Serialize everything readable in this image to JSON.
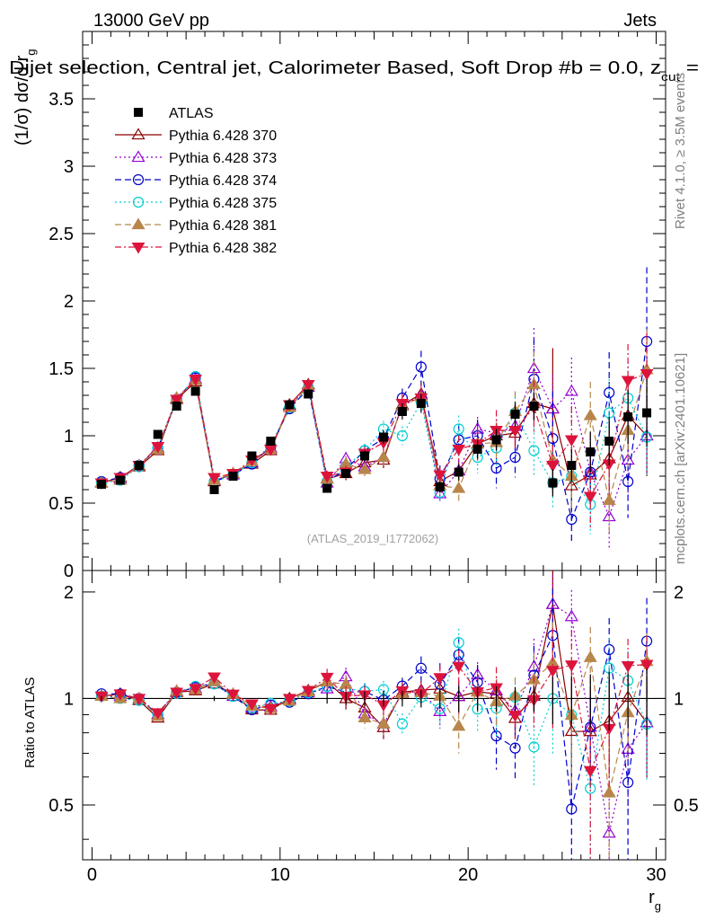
{
  "header": {
    "left": "13000 GeV pp",
    "right": "Jets",
    "title": "Dijet selection, Central jet, Calorimeter Based, Soft Drop #b = 0.0, z",
    "title_sub": "cut",
    "title_tail": " = "
  },
  "side": {
    "rivet": "Rivet 4.1.0, ≥ 3.5M events",
    "mcplots": "mcplots.cern.ch [arXiv:2401.10621]"
  },
  "watermark": "(ATLAS_2019_I1772062)",
  "chart_data": {
    "type": "scatter",
    "x": [
      0.5,
      1.5,
      2.5,
      3.5,
      4.5,
      5.5,
      6.5,
      7.5,
      8.5,
      9.5,
      10.5,
      11.5,
      12.5,
      13.5,
      14.5,
      15.5,
      16.5,
      17.5,
      18.5,
      19.5,
      20.5,
      21.5,
      22.5,
      23.5,
      24.5,
      25.5,
      26.5,
      27.5,
      28.5,
      29.5
    ],
    "xlim": [
      -0.5,
      30.5
    ],
    "xticks": [
      0,
      10,
      20,
      30
    ],
    "xlabel": "r",
    "xlabel_sub": "g",
    "ylabel": "(1/σ) dσ/d r",
    "ylabel_sub": "g",
    "ylim": [
      0,
      4.0
    ],
    "yticks": [
      0,
      0.5,
      1,
      1.5,
      2,
      2.5,
      3,
      3.5
    ],
    "ratio_ylabel": "Ratio to ATLAS",
    "ratio_ylim": [
      0.35,
      2.3
    ],
    "ratio_yticks": [
      0.5,
      1,
      2
    ],
    "ratio_reference": 1,
    "series": [
      {
        "name": "ATLAS",
        "style": "data",
        "color": "#000000",
        "values": [
          0.64,
          0.67,
          0.78,
          1.01,
          1.22,
          1.33,
          0.6,
          0.7,
          0.85,
          0.96,
          1.23,
          1.31,
          0.61,
          0.72,
          0.85,
          0.99,
          1.18,
          1.24,
          0.62,
          0.73,
          0.9,
          0.97,
          1.16,
          1.22,
          0.65,
          0.78,
          0.88,
          0.96,
          1.14,
          1.17
        ],
        "errors": [
          0.01,
          0.01,
          0.01,
          0.01,
          0.01,
          0.01,
          0.01,
          0.01,
          0.01,
          0.01,
          0.01,
          0.01,
          0.02,
          0.03,
          0.04,
          0.05,
          0.06,
          0.07,
          0.04,
          0.06,
          0.07,
          0.08,
          0.09,
          0.1,
          0.1,
          0.12,
          0.15,
          0.18,
          0.2,
          0.25
        ]
      },
      {
        "name": "Pythia 6.428 370",
        "style": "solid",
        "color": "#8b0000",
        "marker": "triangle-open",
        "values": [
          0.65,
          0.69,
          0.77,
          0.89,
          1.27,
          1.4,
          0.66,
          0.72,
          0.79,
          0.89,
          1.23,
          1.38,
          0.68,
          0.72,
          0.8,
          0.82,
          1.23,
          1.31,
          0.66,
          0.74,
          0.94,
          1.0,
          1.02,
          1.24,
          1.2,
          0.63,
          0.71,
          0.83,
          1.15,
          1.0
        ],
        "errors": [
          0.01,
          0.01,
          0.01,
          0.01,
          0.01,
          0.01,
          0.01,
          0.01,
          0.01,
          0.01,
          0.01,
          0.01,
          0.04,
          0.05,
          0.05,
          0.06,
          0.07,
          0.08,
          0.06,
          0.08,
          0.09,
          0.1,
          0.12,
          0.13,
          0.45,
          0.2,
          0.22,
          0.25,
          0.27,
          0.3
        ]
      },
      {
        "name": "Pythia 6.428 373",
        "style": "dotted",
        "color": "#9400d3",
        "marker": "triangle-open",
        "values": [
          0.65,
          0.68,
          0.78,
          0.91,
          1.28,
          1.42,
          0.67,
          0.71,
          0.8,
          0.91,
          1.22,
          1.36,
          0.65,
          0.83,
          0.77,
          0.84,
          1.22,
          1.3,
          0.57,
          0.74,
          1.05,
          1.02,
          1.07,
          1.5,
          1.2,
          1.33,
          0.73,
          0.4,
          0.82,
          1.0
        ],
        "errors": [
          0.01,
          0.01,
          0.01,
          0.01,
          0.01,
          0.01,
          0.01,
          0.01,
          0.01,
          0.01,
          0.01,
          0.01,
          0.04,
          0.05,
          0.05,
          0.06,
          0.07,
          0.08,
          0.06,
          0.08,
          0.09,
          0.1,
          0.12,
          0.3,
          0.25,
          0.25,
          0.25,
          0.25,
          0.27,
          0.3
        ]
      },
      {
        "name": "Pythia 6.428 374",
        "style": "dashed",
        "color": "#0000cd",
        "marker": "circle-open",
        "values": [
          0.66,
          0.69,
          0.78,
          0.91,
          1.27,
          1.43,
          0.66,
          0.71,
          0.79,
          0.92,
          1.2,
          1.35,
          0.66,
          0.75,
          0.89,
          0.98,
          1.28,
          1.51,
          0.68,
          0.97,
          1.0,
          0.76,
          0.84,
          1.42,
          0.98,
          0.38,
          0.73,
          1.32,
          0.66,
          1.7
        ],
        "errors": [
          0.01,
          0.01,
          0.01,
          0.01,
          0.01,
          0.01,
          0.01,
          0.01,
          0.01,
          0.01,
          0.01,
          0.01,
          0.04,
          0.05,
          0.05,
          0.06,
          0.07,
          0.12,
          0.1,
          0.12,
          0.12,
          0.15,
          0.15,
          0.3,
          0.35,
          0.18,
          0.22,
          0.3,
          0.27,
          0.55
        ]
      },
      {
        "name": "Pythia 6.428 375",
        "style": "dotted",
        "color": "#00ced1",
        "marker": "circle-open",
        "values": [
          0.65,
          0.67,
          0.77,
          0.91,
          1.26,
          1.44,
          0.66,
          0.71,
          0.8,
          0.93,
          1.21,
          1.36,
          0.66,
          0.77,
          0.89,
          1.05,
          1.0,
          1.25,
          0.58,
          1.05,
          0.84,
          0.91,
          1.17,
          0.89,
          0.65,
          0.7,
          0.49,
          1.17,
          1.28,
          0.99
        ],
        "errors": [
          0.01,
          0.01,
          0.01,
          0.01,
          0.01,
          0.01,
          0.01,
          0.01,
          0.01,
          0.01,
          0.01,
          0.01,
          0.04,
          0.05,
          0.05,
          0.06,
          0.07,
          0.08,
          0.06,
          0.1,
          0.12,
          0.15,
          0.15,
          0.2,
          0.2,
          0.22,
          0.22,
          0.25,
          0.27,
          0.3
        ]
      },
      {
        "name": "Pythia 6.428 381",
        "style": "dashed",
        "color": "#b8864b",
        "marker": "triangle-filled",
        "values": [
          0.65,
          0.67,
          0.78,
          0.9,
          1.28,
          1.41,
          0.67,
          0.72,
          0.81,
          0.9,
          1.21,
          1.37,
          0.68,
          0.79,
          0.75,
          0.84,
          1.22,
          1.29,
          0.63,
          0.61,
          0.94,
          0.95,
          1.18,
          1.38,
          0.82,
          0.7,
          1.15,
          0.52,
          1.04,
          1.49
        ],
        "errors": [
          0.01,
          0.01,
          0.01,
          0.01,
          0.01,
          0.01,
          0.01,
          0.01,
          0.01,
          0.01,
          0.01,
          0.01,
          0.04,
          0.05,
          0.05,
          0.06,
          0.07,
          0.08,
          0.06,
          0.1,
          0.12,
          0.15,
          0.15,
          0.25,
          0.25,
          0.25,
          0.25,
          0.25,
          0.27,
          0.3
        ]
      },
      {
        "name": "Pythia 6.428 382",
        "style": "dashdot",
        "color": "#dc143c",
        "marker": "triangle-down-filled",
        "values": [
          0.65,
          0.69,
          0.78,
          0.92,
          1.27,
          1.42,
          0.69,
          0.72,
          0.82,
          0.9,
          1.23,
          1.38,
          0.7,
          0.73,
          0.87,
          0.95,
          1.24,
          1.28,
          0.71,
          0.9,
          0.94,
          1.04,
          1.04,
          1.21,
          0.78,
          0.97,
          0.55,
          0.79,
          1.41,
          1.46
        ],
        "errors": [
          0.01,
          0.01,
          0.01,
          0.01,
          0.01,
          0.01,
          0.01,
          0.01,
          0.01,
          0.01,
          0.01,
          0.01,
          0.04,
          0.05,
          0.05,
          0.06,
          0.07,
          0.08,
          0.06,
          0.1,
          0.12,
          0.15,
          0.15,
          0.2,
          0.25,
          0.25,
          0.25,
          0.25,
          0.27,
          0.3
        ]
      }
    ]
  }
}
